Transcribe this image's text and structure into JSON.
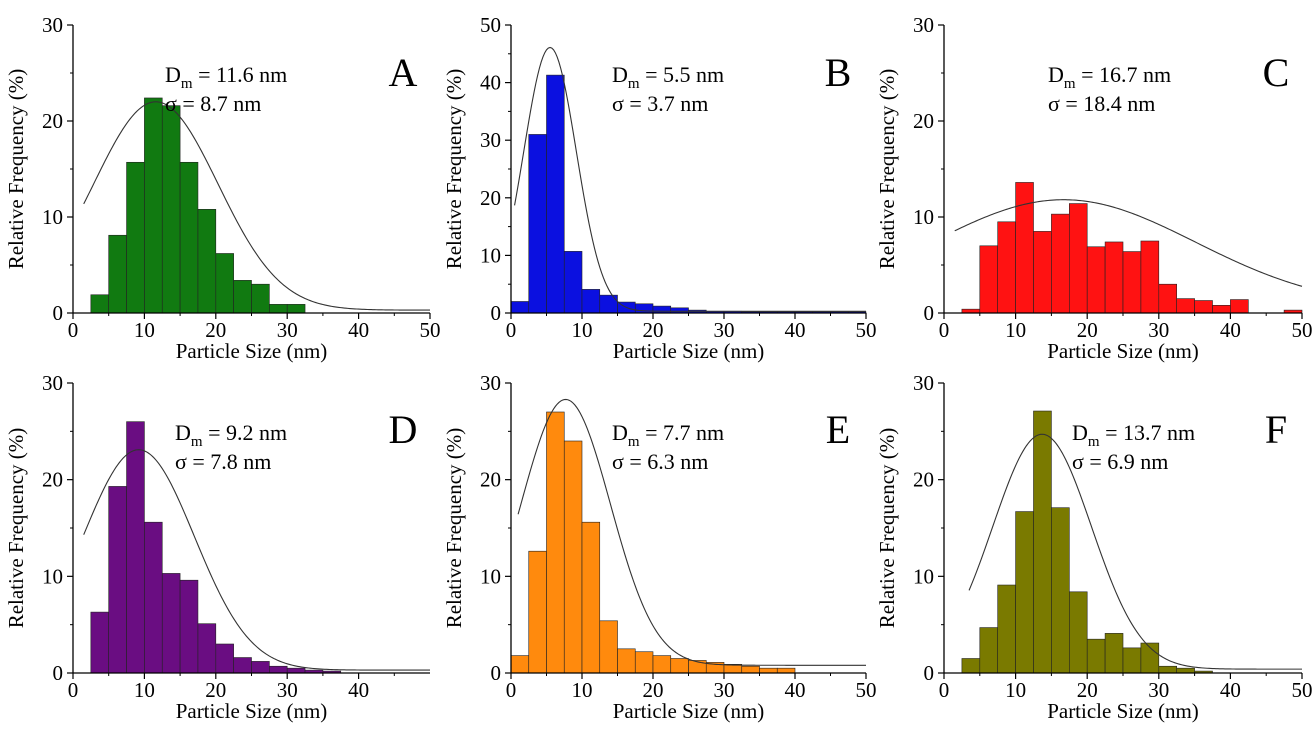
{
  "colors": {
    "A": "#117a11",
    "B": "#0b10e0",
    "C": "#ff1212",
    "D": "#6a0d82",
    "E": "#ff8a0d",
    "F": "#7a7a00"
  },
  "chart_data": [
    {
      "type": "bar",
      "panel": "A",
      "xlabel": "Particle Size (nm)",
      "ylabel": "Relative Frequency (%)",
      "xlim": [
        0,
        50
      ],
      "ylim": [
        0,
        30
      ],
      "xticks": [
        0,
        10,
        20,
        30,
        40,
        50
      ],
      "yticks": [
        0,
        10,
        20,
        30
      ],
      "bin_width": 2.5,
      "x": [
        2.5,
        5,
        7.5,
        10,
        12.5,
        15,
        17.5,
        20,
        22.5,
        25,
        27.5,
        30
      ],
      "values": [
        1.9,
        8.1,
        15.7,
        22.4,
        21.6,
        15.7,
        10.8,
        6.2,
        3.4,
        3.0,
        0.9,
        0.9
      ],
      "fit": {
        "mean": 11.6,
        "sigma": 8.7,
        "peak": 21.7,
        "x_start": 1.5,
        "x_end": 50,
        "tail": 0.3
      },
      "annotation": {
        "prefix": "D",
        "subscript": "m",
        "mean_text": " = 11.6 nm",
        "sigma_text": "σ = 8.7 nm"
      }
    },
    {
      "type": "bar",
      "panel": "B",
      "xlabel": "Particle Size (nm)",
      "ylabel": "Relative Frequency (%)",
      "xlim": [
        0,
        50
      ],
      "ylim": [
        0,
        50
      ],
      "xticks": [
        0,
        10,
        20,
        30,
        40,
        50
      ],
      "yticks": [
        0,
        10,
        20,
        30,
        40,
        50
      ],
      "bin_width": 2.5,
      "x": [
        0,
        2.5,
        5,
        7.5,
        10,
        12.5,
        15,
        17.5,
        20,
        22.5,
        25,
        27.5,
        30,
        32.5,
        35,
        37.5,
        40,
        42.5,
        45,
        47.5
      ],
      "values": [
        2.0,
        31.0,
        41.3,
        10.7,
        4.1,
        3.1,
        1.9,
        1.6,
        1.2,
        0.9,
        0.5,
        0.3,
        0.3,
        0.2,
        0.2,
        0.2,
        0.2,
        0.2,
        0.2,
        0.2
      ],
      "fit": {
        "mean": 5.5,
        "sigma": 3.7,
        "peak": 45.8,
        "x_start": 0.5,
        "x_end": 50,
        "tail": 0.3
      },
      "annotation": {
        "prefix": "D",
        "subscript": "m",
        "mean_text": " = 5.5 nm",
        "sigma_text": "σ = 3.7 nm"
      }
    },
    {
      "type": "bar",
      "panel": "C",
      "xlabel": "Particle Size (nm)",
      "ylabel": "Relative Frequency (%)",
      "xlim": [
        0,
        50
      ],
      "ylim": [
        0,
        30
      ],
      "xticks": [
        0,
        10,
        20,
        30,
        40,
        50
      ],
      "yticks": [
        0,
        10,
        20,
        30
      ],
      "bin_width": 2.5,
      "x": [
        2.5,
        5,
        7.5,
        10,
        12.5,
        15,
        17.5,
        20,
        22.5,
        25,
        27.5,
        30,
        32.5,
        35,
        37.5,
        40,
        47.5
      ],
      "values": [
        0.4,
        7.0,
        9.5,
        13.6,
        8.5,
        10.3,
        11.4,
        6.9,
        7.4,
        6.4,
        7.5,
        3.0,
        1.5,
        1.3,
        0.8,
        1.4,
        0.3
      ],
      "fit": {
        "mean": 16.7,
        "sigma": 18.4,
        "peak": 11.2,
        "x_start": 1.5,
        "x_end": 50,
        "tail": 0.6
      },
      "annotation": {
        "prefix": "D",
        "subscript": "m",
        "mean_text": " = 16.7 nm",
        "sigma_text": "σ = 18.4 nm"
      }
    },
    {
      "type": "bar",
      "panel": "D",
      "xlabel": "Particle Size (nm)",
      "ylabel": "Relative Frequency (%)",
      "xlim": [
        0,
        50
      ],
      "ylim": [
        0,
        30
      ],
      "xticks": [
        0,
        10,
        20,
        30,
        40
      ],
      "yticks": [
        0,
        10,
        20,
        30
      ],
      "bin_width": 2.5,
      "x": [
        2.5,
        5,
        7.5,
        10,
        12.5,
        15,
        17.5,
        20,
        22.5,
        25,
        27.5,
        30,
        32.5,
        35
      ],
      "values": [
        6.3,
        19.3,
        26.0,
        15.6,
        10.3,
        9.6,
        5.1,
        3.0,
        1.6,
        1.2,
        0.7,
        0.5,
        0.3,
        0.2
      ],
      "fit": {
        "mean": 9.2,
        "sigma": 7.8,
        "peak": 22.8,
        "x_start": 1.5,
        "x_end": 50,
        "tail": 0.3
      },
      "annotation": {
        "prefix": "D",
        "subscript": "m",
        "mean_text": " = 9.2 nm",
        "sigma_text": "σ = 7.8 nm"
      }
    },
    {
      "type": "bar",
      "panel": "E",
      "xlabel": "Particle Size (nm)",
      "ylabel": "Relative Frequency (%)",
      "xlim": [
        0,
        50
      ],
      "ylim": [
        0,
        30
      ],
      "xticks": [
        0,
        10,
        20,
        30,
        40,
        50
      ],
      "yticks": [
        0,
        10,
        20,
        30
      ],
      "bin_width": 2.5,
      "x": [
        0,
        2.5,
        5,
        7.5,
        10,
        12.5,
        15,
        17.5,
        20,
        22.5,
        25,
        27.5,
        30,
        32.5,
        35,
        37.5
      ],
      "values": [
        1.8,
        12.6,
        27.0,
        24.0,
        15.6,
        5.4,
        2.5,
        2.2,
        1.8,
        1.5,
        1.3,
        1.1,
        0.9,
        0.7,
        0.5,
        0.5
      ],
      "fit": {
        "mean": 7.7,
        "sigma": 6.3,
        "peak": 27.5,
        "x_start": 1,
        "x_end": 50,
        "tail": 0.8
      },
      "annotation": {
        "prefix": "D",
        "subscript": "m",
        "mean_text": " = 7.7 nm",
        "sigma_text": "σ = 6.3 nm"
      }
    },
    {
      "type": "bar",
      "panel": "F",
      "xlabel": "Particle Size (nm)",
      "ylabel": "Relative Frequency (%)",
      "xlim": [
        0,
        50
      ],
      "ylim": [
        0,
        30
      ],
      "xticks": [
        0,
        10,
        20,
        30,
        40,
        50
      ],
      "yticks": [
        0,
        10,
        20,
        30
      ],
      "bin_width": 2.5,
      "x": [
        2.5,
        5,
        7.5,
        10,
        12.5,
        15,
        17.5,
        20,
        22.5,
        25,
        27.5,
        30,
        32.5,
        35
      ],
      "values": [
        1.5,
        4.7,
        9.1,
        16.7,
        27.1,
        17.1,
        8.4,
        3.5,
        4.1,
        2.6,
        3.1,
        0.7,
        0.5,
        0.2
      ],
      "fit": {
        "mean": 13.7,
        "sigma": 6.9,
        "peak": 24.3,
        "x_start": 3.5,
        "x_end": 50,
        "tail": 0.4
      },
      "annotation": {
        "prefix": "D",
        "subscript": "m",
        "mean_text": " = 13.7 nm",
        "sigma_text": "σ = 6.9 nm"
      }
    }
  ]
}
